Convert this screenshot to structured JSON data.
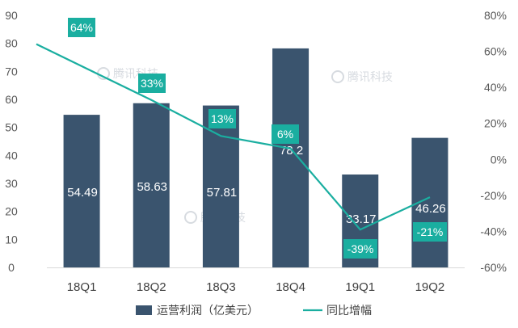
{
  "chart_data": {
    "type": "bar",
    "categories": [
      "18Q1",
      "18Q2",
      "18Q3",
      "18Q4",
      "19Q1",
      "19Q2"
    ],
    "series": [
      {
        "name": "运营利润（亿美元）",
        "type": "bar",
        "axis": "left",
        "values": [
          54.49,
          58.63,
          57.81,
          78.2,
          33.17,
          46.26
        ],
        "labels": [
          "54.49",
          "58.63",
          "57.81",
          "78.2",
          "33.17",
          "46.26"
        ],
        "color": "#3a546e"
      },
      {
        "name": "同比增幅",
        "type": "line",
        "axis": "right",
        "values": [
          64,
          33,
          13,
          6,
          -39,
          -21
        ],
        "labels": [
          "64%",
          "33%",
          "13%",
          "6%",
          "-39%",
          "-21%"
        ],
        "color": "#1aaea0"
      }
    ],
    "y_left": {
      "min": 0,
      "max": 90,
      "ticks": [
        "0",
        "10",
        "20",
        "30",
        "40",
        "50",
        "60",
        "70",
        "80",
        "90"
      ]
    },
    "y_right": {
      "min": -60,
      "max": 80,
      "ticks": [
        "-60%",
        "-40%",
        "-20%",
        "0%",
        "20%",
        "40%",
        "60%",
        "80%"
      ]
    },
    "grid": false,
    "legend": "bottom",
    "watermark": "腾讯科技"
  }
}
